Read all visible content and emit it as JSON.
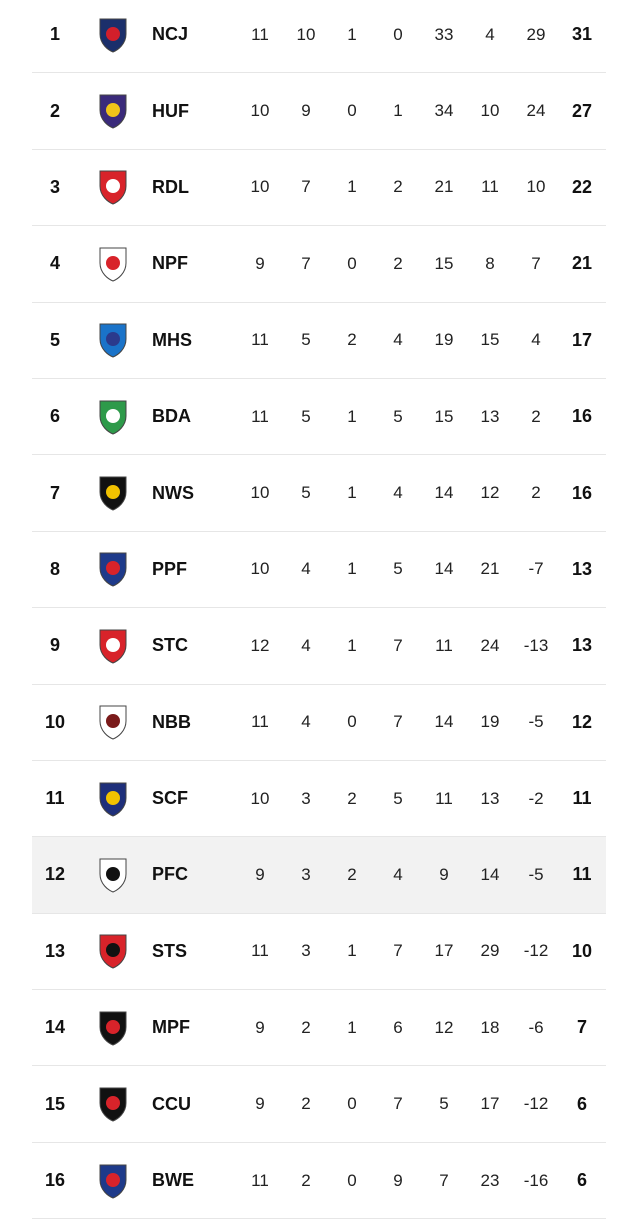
{
  "rows": [
    {
      "pos": "1",
      "team": "NCJ",
      "p": "11",
      "w": "10",
      "d": "1",
      "l": "0",
      "gf": "33",
      "ga": "4",
      "gd": "29",
      "pts": "31",
      "icon": "jets-crest-icon",
      "c1": "#1b2f6b",
      "c2": "#d21f2b",
      "highlight": false
    },
    {
      "pos": "2",
      "team": "HUF",
      "p": "10",
      "w": "9",
      "d": "0",
      "l": "1",
      "gf": "34",
      "ga": "10",
      "gd": "24",
      "pts": "27",
      "icon": "hills-united-crest-icon",
      "c1": "#3a2a7a",
      "c2": "#f0c419",
      "highlight": false
    },
    {
      "pos": "3",
      "team": "RDL",
      "p": "10",
      "w": "7",
      "d": "1",
      "l": "2",
      "gf": "21",
      "ga": "11",
      "gd": "10",
      "pts": "22",
      "icon": "rdl-crest-icon",
      "c1": "#d8232a",
      "c2": "#ffffff",
      "highlight": false
    },
    {
      "pos": "4",
      "team": "NPF",
      "p": "9",
      "w": "7",
      "d": "0",
      "l": "2",
      "gf": "15",
      "ga": "8",
      "gd": "7",
      "pts": "21",
      "icon": "npf-crest-icon",
      "c1": "#ffffff",
      "c2": "#d8232a",
      "highlight": false
    },
    {
      "pos": "5",
      "team": "MHS",
      "p": "11",
      "w": "5",
      "d": "2",
      "l": "4",
      "gf": "19",
      "ga": "15",
      "gd": "4",
      "pts": "17",
      "icon": "hakoah-crest-icon",
      "c1": "#1a73c9",
      "c2": "#2b3a8c",
      "highlight": false
    },
    {
      "pos": "6",
      "team": "BDA",
      "p": "11",
      "w": "5",
      "d": "1",
      "l": "5",
      "gf": "15",
      "ga": "13",
      "gd": "2",
      "pts": "16",
      "icon": "bda-crest-icon",
      "c1": "#2e9a4a",
      "c2": "#ffffff",
      "highlight": false
    },
    {
      "pos": "7",
      "team": "NWS",
      "p": "10",
      "w": "5",
      "d": "1",
      "l": "4",
      "gf": "14",
      "ga": "12",
      "gd": "2",
      "pts": "16",
      "icon": "spirit-fc-crest-icon",
      "c1": "#111111",
      "c2": "#f2c200",
      "highlight": false
    },
    {
      "pos": "8",
      "team": "PPF",
      "p": "10",
      "w": "4",
      "d": "1",
      "l": "5",
      "gf": "14",
      "ga": "21",
      "gd": "-7",
      "pts": "13",
      "icon": "ppf-crest-icon",
      "c1": "#1e3a8a",
      "c2": "#d8232a",
      "highlight": false
    },
    {
      "pos": "9",
      "team": "STC",
      "p": "12",
      "w": "4",
      "d": "1",
      "l": "7",
      "gf": "11",
      "ga": "24",
      "gd": "-13",
      "pts": "13",
      "icon": "stc-crest-icon",
      "c1": "#d8232a",
      "c2": "#ffffff",
      "highlight": false
    },
    {
      "pos": "10",
      "team": "NBB",
      "p": "11",
      "w": "4",
      "d": "0",
      "l": "7",
      "gf": "14",
      "ga": "19",
      "gd": "-5",
      "pts": "12",
      "icon": "nbb-crest-icon",
      "c1": "#ffffff",
      "c2": "#7a1a1a",
      "highlight": false
    },
    {
      "pos": "11",
      "team": "SCF",
      "p": "10",
      "w": "3",
      "d": "2",
      "l": "5",
      "gf": "11",
      "ga": "13",
      "gd": "-2",
      "pts": "11",
      "icon": "scf-crest-icon",
      "c1": "#1e2f7a",
      "c2": "#f2c200",
      "highlight": false
    },
    {
      "pos": "12",
      "team": "PFC",
      "p": "9",
      "w": "3",
      "d": "2",
      "l": "4",
      "gf": "9",
      "ga": "14",
      "gd": "-5",
      "pts": "11",
      "icon": "pfc-crest-icon",
      "c1": "#ffffff",
      "c2": "#111111",
      "highlight": true
    },
    {
      "pos": "13",
      "team": "STS",
      "p": "11",
      "w": "3",
      "d": "1",
      "l": "7",
      "gf": "17",
      "ga": "29",
      "gd": "-12",
      "pts": "10",
      "icon": "sts-crest-icon",
      "c1": "#d8232a",
      "c2": "#111111",
      "highlight": false
    },
    {
      "pos": "14",
      "team": "MPF",
      "p": "9",
      "w": "2",
      "d": "1",
      "l": "6",
      "gf": "12",
      "ga": "18",
      "gd": "-6",
      "pts": "7",
      "icon": "mpf-crest-icon",
      "c1": "#111111",
      "c2": "#d8232a",
      "highlight": false
    },
    {
      "pos": "15",
      "team": "CCU",
      "p": "9",
      "w": "2",
      "d": "0",
      "l": "7",
      "gf": "5",
      "ga": "17",
      "gd": "-12",
      "pts": "6",
      "icon": "ccu-crest-icon",
      "c1": "#111111",
      "c2": "#d8232a",
      "highlight": false
    },
    {
      "pos": "16",
      "team": "BWE",
      "p": "11",
      "w": "2",
      "d": "0",
      "l": "9",
      "gf": "7",
      "ga": "23",
      "gd": "-16",
      "pts": "6",
      "icon": "bwe-crest-icon",
      "c1": "#1e3a8a",
      "c2": "#d8232a",
      "highlight": false
    }
  ]
}
